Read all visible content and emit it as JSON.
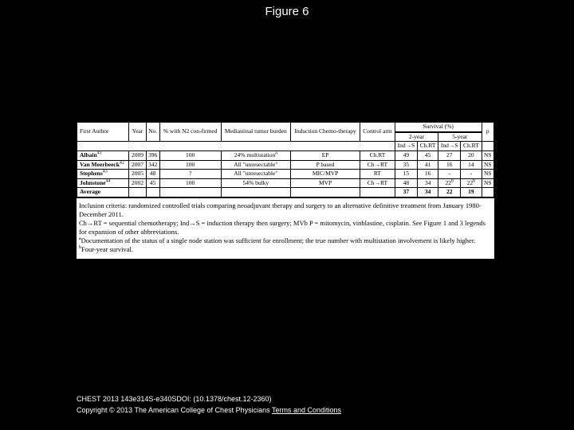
{
  "figure_title": "Figure 6",
  "table": {
    "header": {
      "first_author": "First Author",
      "year": "Year",
      "no": "No.",
      "pct_n2": "% with N2 con-firmed",
      "mediastinal": "Mediastinal tumor burden",
      "induction": "Induction Chemo-therapy",
      "control": "Control arm",
      "survival": "Survival (%)",
      "two_year": "2-year",
      "five_year": "5-year",
      "ind_s": "Ind→S",
      "chrt": "Ch.RT",
      "p": "p"
    },
    "rows": [
      {
        "author": "Albain",
        "sup": "41",
        "year": "2009",
        "no": "396",
        "pct": "100",
        "burden": "24% multistation",
        "burden_sup": "a",
        "chemo": "EP",
        "control": "Ch.RT",
        "y2_ind": "49",
        "y2_chrt": "45",
        "y5_ind": "27",
        "y5_chrt": "20",
        "p": "NS"
      },
      {
        "author": "Van Meerbeeck",
        "sup": "42",
        "year": "2007",
        "no": "342",
        "pct": "100",
        "burden": "All \"unresectable\"",
        "burden_sup": "",
        "chemo": "P based",
        "control": "Ch→RT",
        "y2_ind": "35",
        "y2_chrt": "41",
        "y5_ind": "16",
        "y5_chrt": "14",
        "p": "NS"
      },
      {
        "author": "Stephens",
        "sup": "43",
        "year": "2005",
        "no": "48",
        "pct": "?",
        "burden": "All \"unresectable\"",
        "burden_sup": "",
        "chemo": "MIC/MVP",
        "control": "RT",
        "y2_ind": "15",
        "y2_chrt": "16",
        "y5_ind": "-",
        "y5_chrt": "-",
        "p": "NS"
      },
      {
        "author": "Johnstone",
        "sup": "44",
        "year": "2002",
        "no": "45",
        "pct": "100",
        "burden": "54% bulky",
        "burden_sup": "",
        "chemo": "MVP",
        "control": "Ch→RT",
        "y2_ind": "48",
        "y2_chrt": "34",
        "y5_ind": "22",
        "y5_ind_sup": "b",
        "y5_chrt": "22",
        "y5_chrt_sup": "b",
        "p": "NS"
      }
    ],
    "average": {
      "label": "Average",
      "y2_ind": "37",
      "y2_chrt": "34",
      "y5_ind": "22",
      "y5_chrt": "19"
    }
  },
  "notes": {
    "l1": "Inclusion criteria: randomized controlled trials comparing neoadjuvant therapy and surgery to an alternative definitive treatment from January 1980-December 2011.",
    "l2": "Ch→RT = sequential chemotherapy; Ind→S = induction therapy then surgery; MVb P = mitomycin, vinblastine, cisplatin. See Figure 1 and 3 legends for expansion of other abbreviations.",
    "l3a_sup": "a",
    "l3a": "Documentation of the status of a single node station was sufficient for enrollment; the true number with multistation involvement is likely higher.",
    "l3b_sup": "b",
    "l3b": "Four-year survival."
  },
  "citation": {
    "line1": "CHEST 2013 143e314S-e340SDOI: (10.1378/chest.12-2360)",
    "line2_prefix": "Copyright © 2013 The American College of Chest Physicians ",
    "line2_link": "Terms and Conditions"
  }
}
